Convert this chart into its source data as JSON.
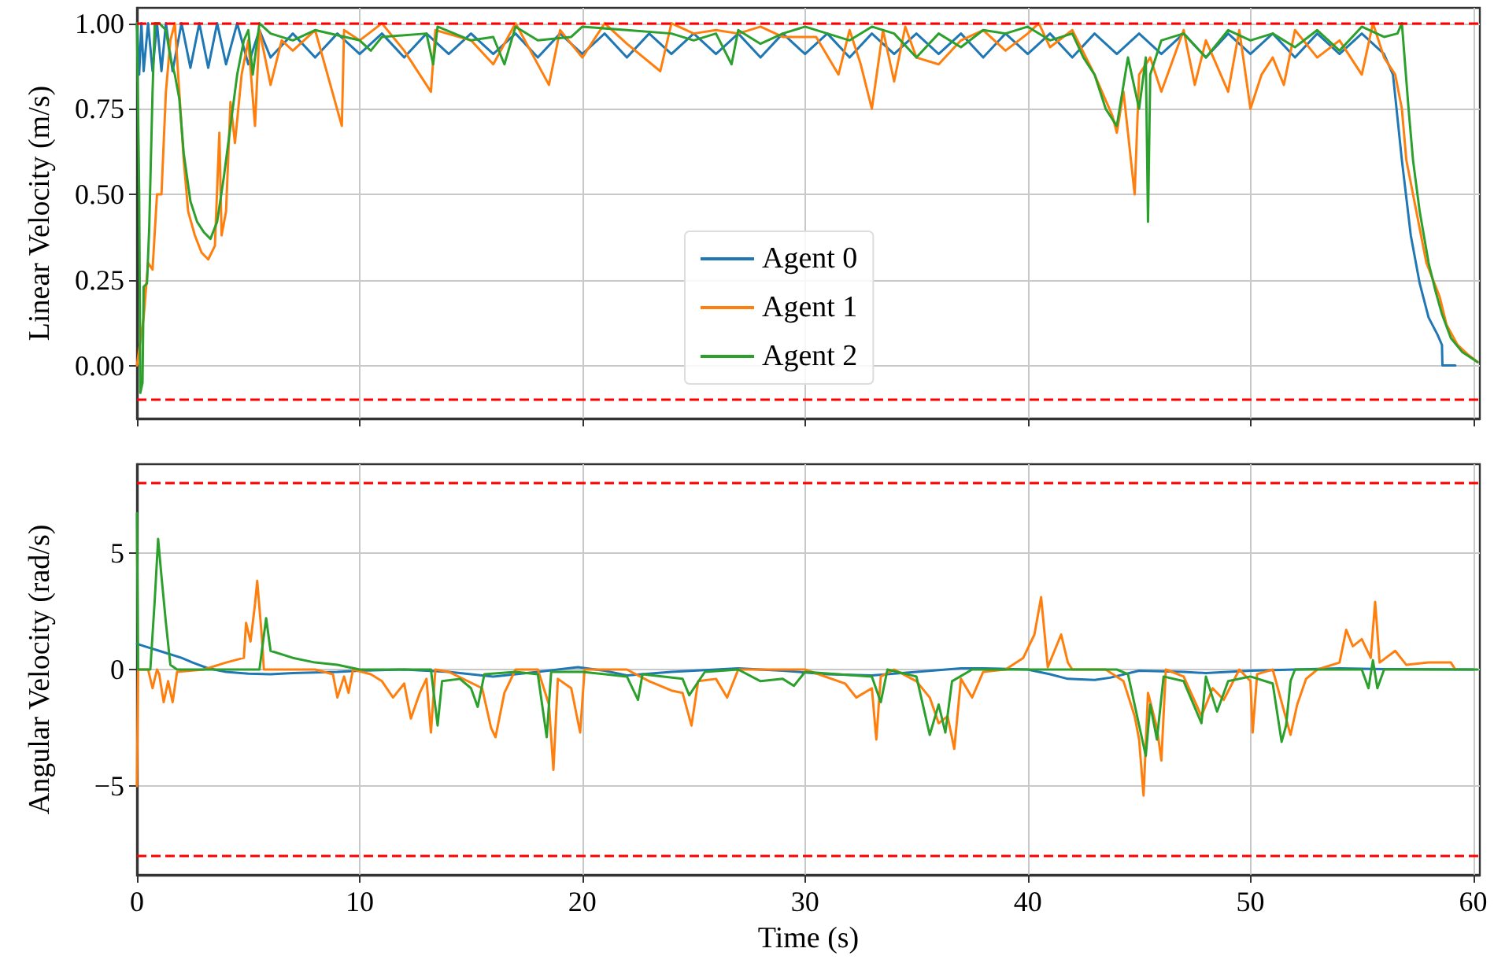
{
  "chart_data": [
    {
      "type": "line",
      "ylabel": "Linear Velocity (m/s)",
      "xlim": [
        0,
        60.3
      ],
      "ylim": [
        -0.155,
        1.045
      ],
      "xticks": [
        0,
        10,
        20,
        30,
        40,
        50,
        60
      ],
      "yticks": [
        {
          "value": 0,
          "label": "0.00"
        },
        {
          "value": 0.25,
          "label": "0.25"
        },
        {
          "value": 0.5,
          "label": "0.50"
        },
        {
          "value": 0.75,
          "label": "0.75"
        },
        {
          "value": 1,
          "label": "1.00"
        }
      ],
      "tick_labels": "y",
      "grid": true,
      "legend": "bottom",
      "marker": "none",
      "line_style": "solid",
      "ref_lines": [
        {
          "axis": "y",
          "value": 1,
          "color": "#ff0000",
          "line_style": "dashed"
        },
        {
          "axis": "y",
          "value": -0.1,
          "color": "#ff0000",
          "line_style": "dashed"
        }
      ],
      "series": [
        {
          "name": "Agent 0",
          "color": "#1f77b4",
          "x": [
            0,
            0.1,
            0.2,
            0.3,
            0.5,
            0.7,
            0.9,
            1.1,
            1.3,
            1.6,
            2,
            2.4,
            2.8,
            3.2,
            3.6,
            4,
            4.5,
            5,
            5.5,
            6,
            7,
            8,
            9,
            10,
            11,
            12,
            13,
            14,
            15,
            16,
            17,
            18,
            19,
            20,
            21,
            22,
            23,
            24,
            25,
            26,
            27,
            28,
            29,
            30,
            31,
            32,
            33,
            34,
            35,
            36,
            37,
            38,
            39,
            40,
            41,
            42,
            43,
            44,
            45,
            46,
            47,
            48,
            49,
            50,
            51,
            52,
            53,
            54,
            55,
            56,
            56.4,
            56.8,
            57.2,
            57.6,
            58,
            58.4,
            58.6,
            58.62,
            59.2
          ],
          "values": [
            1.0,
            0.85,
            1.0,
            0.86,
            1.0,
            0.86,
            1.0,
            0.86,
            1.0,
            0.86,
            1.0,
            0.87,
            1.0,
            0.87,
            1.0,
            0.88,
            1.0,
            0.88,
            0.98,
            0.9,
            0.97,
            0.9,
            0.97,
            0.91,
            0.97,
            0.9,
            0.97,
            0.91,
            0.97,
            0.91,
            0.97,
            0.9,
            0.97,
            0.91,
            0.97,
            0.9,
            0.97,
            0.91,
            0.97,
            0.91,
            0.97,
            0.9,
            0.97,
            0.91,
            0.97,
            0.9,
            0.97,
            0.91,
            0.97,
            0.91,
            0.97,
            0.9,
            0.97,
            0.91,
            0.97,
            0.9,
            0.97,
            0.91,
            0.97,
            0.91,
            0.97,
            0.9,
            0.97,
            0.91,
            0.97,
            0.9,
            0.97,
            0.91,
            0.97,
            0.91,
            0.85,
            0.6,
            0.38,
            0.24,
            0.14,
            0.09,
            0.06,
            0,
            0
          ]
        },
        {
          "name": "Agent 1",
          "color": "#ff7f0e",
          "x": [
            0,
            0.3,
            0.5,
            0.7,
            0.9,
            1.1,
            1.3,
            1.5,
            1.7,
            1.9,
            2.1,
            2.3,
            2.6,
            2.9,
            3.2,
            3.5,
            3.7,
            3.8,
            4.0,
            4.2,
            4.4,
            4.7,
            5.0,
            5.3,
            5.5,
            6,
            6.5,
            7,
            8,
            9.2,
            9.3,
            10,
            11,
            12,
            13.2,
            13.4,
            15,
            16,
            17,
            18.5,
            19,
            20,
            21,
            22,
            23.5,
            24,
            25,
            26,
            27,
            28,
            29,
            30.5,
            31.5,
            32,
            32.5,
            33,
            33.5,
            34,
            34.5,
            35,
            36,
            37,
            38,
            39,
            40,
            40.5,
            41,
            42,
            43,
            43.8,
            44,
            44.3,
            44.8,
            45,
            45.5,
            46,
            47,
            47.5,
            48,
            49,
            49.5,
            50,
            50.5,
            51,
            51.5,
            52,
            53,
            54,
            55,
            55.5,
            56,
            56.5,
            56.8,
            57,
            57.3,
            57.6,
            57.9,
            58.2,
            58.5,
            58.8,
            59.3,
            59.8,
            60.2
          ],
          "values": [
            0,
            0.14,
            0.3,
            0.28,
            0.5,
            0.5,
            0.8,
            0.95,
            1.0,
            0.8,
            0.6,
            0.45,
            0.38,
            0.33,
            0.31,
            0.35,
            0.68,
            0.38,
            0.45,
            0.77,
            0.65,
            0.85,
            0.95,
            0.7,
            0.98,
            0.82,
            0.95,
            0.92,
            0.98,
            0.7,
            0.98,
            0.95,
            1.0,
            0.92,
            0.8,
            0.98,
            0.95,
            0.88,
            1.0,
            0.82,
            0.98,
            0.9,
            1.0,
            0.94,
            0.86,
            1.0,
            0.97,
            0.98,
            0.97,
            0.99,
            0.96,
            0.96,
            0.85,
            0.98,
            0.88,
            0.75,
            0.98,
            0.83,
            0.99,
            0.9,
            0.88,
            0.95,
            0.98,
            0.92,
            0.97,
            1.0,
            0.93,
            0.98,
            0.85,
            0.73,
            0.68,
            0.8,
            0.5,
            0.85,
            0.9,
            0.8,
            0.98,
            0.82,
            0.95,
            0.8,
            0.98,
            0.75,
            0.85,
            0.9,
            0.82,
            0.98,
            0.9,
            0.95,
            0.85,
            1.0,
            0.9,
            0.85,
            0.75,
            0.6,
            0.5,
            0.4,
            0.3,
            0.25,
            0.2,
            0.12,
            0.06,
            0.03,
            0.01
          ]
        },
        {
          "name": "Agent 2",
          "color": "#2ca02c",
          "x": [
            0,
            0.1,
            0.15,
            0.25,
            0.3,
            0.45,
            0.55,
            0.7,
            0.8,
            1.0,
            1.3,
            1.5,
            1.7,
            1.9,
            2.1,
            2.4,
            2.7,
            3.0,
            3.3,
            3.6,
            3.9,
            4.2,
            4.5,
            4.8,
            5.0,
            5.2,
            5.5,
            6,
            7,
            8,
            10,
            10.5,
            11,
            13,
            13.3,
            13.5,
            15,
            16,
            16.5,
            17,
            18,
            19.5,
            20,
            22,
            24,
            25,
            26,
            26.7,
            27,
            28,
            29,
            30,
            31,
            32,
            33,
            34,
            35,
            36,
            37,
            38,
            39,
            40,
            41,
            42,
            42.5,
            43,
            43.5,
            44,
            44.5,
            45,
            45.3,
            45.4,
            45.5,
            46,
            47,
            48,
            49,
            50,
            51,
            52,
            53,
            54,
            55,
            56,
            56.6,
            56.8,
            57.1,
            57.3,
            57.6,
            58,
            58.3,
            58.6,
            59,
            59.5,
            60.2
          ],
          "values": [
            1.0,
            0.5,
            -0.08,
            -0.05,
            0.23,
            0.24,
            0.4,
            0.8,
            1.0,
            1.0,
            0.98,
            0.9,
            0.85,
            0.78,
            0.62,
            0.48,
            0.42,
            0.39,
            0.37,
            0.42,
            0.55,
            0.7,
            0.85,
            0.95,
            0.98,
            0.85,
            1.0,
            0.97,
            0.95,
            0.98,
            0.95,
            0.92,
            0.96,
            0.97,
            0.88,
            0.99,
            0.95,
            0.96,
            0.88,
            0.99,
            0.95,
            0.96,
            0.99,
            0.98,
            0.97,
            0.95,
            0.97,
            0.88,
            0.98,
            0.94,
            0.97,
            0.99,
            0.97,
            0.95,
            0.99,
            0.97,
            0.9,
            0.97,
            0.93,
            0.98,
            0.97,
            0.99,
            0.95,
            0.97,
            0.9,
            0.85,
            0.75,
            0.7,
            0.9,
            0.75,
            0.9,
            0.42,
            0.85,
            0.95,
            0.97,
            0.9,
            0.98,
            0.95,
            0.97,
            0.93,
            0.98,
            0.92,
            0.99,
            0.96,
            0.97,
            1.0,
            0.75,
            0.6,
            0.45,
            0.3,
            0.22,
            0.15,
            0.08,
            0.04,
            0.01
          ]
        }
      ]
    },
    {
      "type": "line",
      "xlabel": "Time (s)",
      "ylabel": "Angular Velocity (rad/s)",
      "xlim": [
        0,
        60.3
      ],
      "ylim": [
        -8.8,
        8.8
      ],
      "xticks": [
        0,
        10,
        20,
        30,
        40,
        50,
        60
      ],
      "yticks": [
        {
          "value": -5,
          "label": "−5"
        },
        0,
        5
      ],
      "grid": true,
      "marker": "none",
      "line_style": "solid",
      "ref_lines": [
        {
          "axis": "y",
          "value": 8,
          "color": "#ff0000",
          "line_style": "dashed"
        },
        {
          "axis": "y",
          "value": -8,
          "color": "#ff0000",
          "line_style": "dashed"
        }
      ],
      "series": [
        {
          "color": "#1f77b4",
          "x": [
            0,
            0.5,
            1,
            2,
            2.5,
            3.2,
            4,
            5,
            6,
            7,
            9,
            10,
            12,
            14,
            16,
            18,
            19.8,
            21,
            22,
            24,
            27,
            29,
            31,
            33,
            35,
            37,
            38,
            40,
            41,
            41.8,
            43,
            43.7,
            45,
            47,
            48,
            50,
            52,
            54,
            56,
            60
          ],
          "values": [
            1.1,
            0.95,
            0.8,
            0.5,
            0.3,
            0.05,
            -0.1,
            -0.18,
            -0.2,
            -0.15,
            -0.1,
            -0.05,
            0,
            -0.1,
            -0.3,
            -0.1,
            0.1,
            -0.05,
            -0.25,
            -0.1,
            0.05,
            -0.05,
            -0.2,
            -0.25,
            -0.1,
            0.05,
            0.05,
            0,
            -0.2,
            -0.4,
            -0.45,
            -0.35,
            -0.05,
            -0.1,
            -0.15,
            -0.05,
            0,
            0.05,
            0.02,
            0
          ]
        },
        {
          "color": "#ff7f0e",
          "x": [
            0,
            0.05,
            0.5,
            0.7,
            0.9,
            1.0,
            1.2,
            1.4,
            1.6,
            1.8,
            3,
            4,
            4.8,
            4.9,
            5.1,
            5.3,
            5.4,
            5.6,
            5.7,
            8,
            8.8,
            9.0,
            9.3,
            9.5,
            9.7,
            10.5,
            11,
            11.5,
            12,
            12.3,
            12.7,
            13.0,
            13.2,
            13.4,
            14,
            15.5,
            15.9,
            16.1,
            16.5,
            17,
            18,
            18.5,
            18.7,
            18.9,
            19.5,
            19.9,
            20.1,
            22,
            23,
            24,
            24.5,
            24.9,
            25.2,
            26,
            26.5,
            27,
            30,
            31.8,
            32.3,
            33.0,
            33.2,
            33.4,
            34,
            35,
            35.6,
            36,
            36.4,
            36.7,
            37,
            37.5,
            38,
            39,
            39.8,
            40.3,
            40.6,
            40.9,
            41.5,
            41.8,
            42,
            43.5,
            44.3,
            44.8,
            45.0,
            45.2,
            45.4,
            45.8,
            46.0,
            46.2,
            47,
            47.8,
            48.3,
            48.8,
            49.5,
            50,
            50.1,
            50.3,
            51,
            51.8,
            52.1,
            52.5,
            53,
            54,
            54.3,
            54.6,
            55,
            55.4,
            55.6,
            55.8,
            56.5,
            57,
            58,
            59,
            59.2
          ],
          "values": [
            -5,
            0,
            0,
            -0.8,
            0,
            -0.2,
            -1.4,
            -0.5,
            -1.4,
            -0.1,
            0,
            0.3,
            0.5,
            2,
            1.2,
            2.8,
            3.8,
            1.5,
            0,
            0,
            -0.2,
            -1.2,
            -0.3,
            -1.0,
            0,
            -0.2,
            -0.5,
            -1.2,
            -0.6,
            -2.1,
            -1.0,
            -0.4,
            -2.7,
            0,
            -0.1,
            -0.8,
            -2.5,
            -2.9,
            -1,
            0,
            0,
            -1.5,
            -4.3,
            -0.4,
            -0.8,
            -2.7,
            0,
            0,
            -0.5,
            -0.9,
            -1.0,
            -2.4,
            -0.5,
            -0.4,
            -1.2,
            0,
            0,
            -0.6,
            -1.2,
            -0.8,
            -3.0,
            -0.3,
            0,
            -0.5,
            -1.2,
            -2.3,
            -2.0,
            -3.4,
            -0.4,
            -1.2,
            -0.1,
            0,
            0.5,
            1.5,
            3.1,
            0.1,
            1.5,
            0.3,
            0,
            0,
            -0.5,
            -2.0,
            -3,
            -5.4,
            -1.0,
            -2.5,
            -3.9,
            0,
            -0.3,
            -2.0,
            -0.8,
            -1.3,
            0,
            -0.5,
            -2.7,
            -0.2,
            0,
            -2.8,
            -1.5,
            -0.4,
            0,
            0.3,
            1.7,
            1.0,
            1.3,
            0.5,
            2.9,
            0.3,
            0.8,
            0.2,
            0.3,
            0.3,
            0
          ]
        },
        {
          "color": "#2ca02c",
          "x": [
            0,
            0.05,
            0.6,
            0.8,
            0.95,
            1.1,
            1.3,
            1.5,
            1.8,
            3,
            5.5,
            5.8,
            6.0,
            7,
            8,
            9,
            9.5,
            10,
            13.2,
            13.5,
            13.7,
            14.5,
            15,
            15.3,
            15.6,
            17,
            18,
            18.4,
            18.6,
            20,
            22,
            22.5,
            22.7,
            24.5,
            24.8,
            25.5,
            27,
            28,
            29,
            29.5,
            30,
            33,
            33.4,
            33.7,
            35,
            35.6,
            36,
            36.3,
            36.6,
            37.5,
            44,
            44.5,
            45.3,
            45.5,
            45.8,
            46.1,
            47,
            47.8,
            48,
            48.5,
            49,
            50,
            51,
            51.4,
            51.6,
            51.8,
            52,
            55,
            55.3,
            55.5,
            55.7,
            56,
            60.2
          ],
          "values": [
            6.7,
            0,
            0,
            3,
            5.6,
            4,
            2,
            0.2,
            0,
            0,
            0,
            2.2,
            0.8,
            0.5,
            0.3,
            0.2,
            0.1,
            0,
            0,
            -2.4,
            -0.5,
            -0.4,
            -0.8,
            -1.6,
            -0.2,
            -0.1,
            -0.2,
            -2.9,
            -0.1,
            -0.1,
            -0.3,
            -1.3,
            -0.2,
            -0.4,
            -1.1,
            -0.1,
            0,
            -0.5,
            -0.4,
            -0.7,
            -0.1,
            -0.3,
            -1.4,
            0,
            -0.3,
            -2.8,
            -1.5,
            -2.7,
            -0.5,
            0,
            0,
            -0.2,
            -3.7,
            -1.5,
            -3.0,
            -0.3,
            -0.5,
            -2.3,
            -0.3,
            -1.8,
            -0.5,
            -0.3,
            -0.6,
            -3.1,
            -2.4,
            -0.5,
            0,
            0,
            -0.8,
            0.4,
            -0.8,
            0,
            0
          ]
        }
      ]
    }
  ]
}
